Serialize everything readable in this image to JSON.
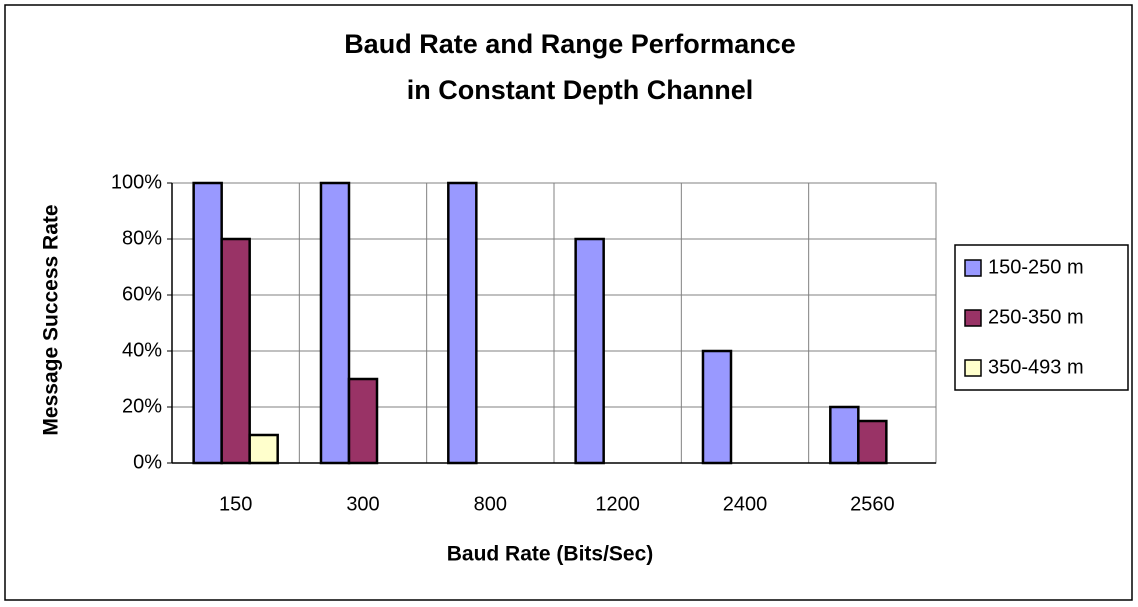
{
  "chart_data": {
    "type": "bar",
    "title": [
      "Baud Rate and Range Performance",
      "in Constant Depth Channel"
    ],
    "x_label": "Baud Rate (Bits/Sec)",
    "y_label": "Message Success Rate",
    "categories": [
      "150",
      "300",
      "800",
      "1200",
      "2400",
      "2560"
    ],
    "series": [
      {
        "name": "150-250 m",
        "color": "#9999ff",
        "values": [
          100,
          100,
          100,
          80,
          40,
          20
        ]
      },
      {
        "name": "250-350 m",
        "color": "#993366",
        "values": [
          80,
          30,
          0,
          0,
          0,
          15
        ]
      },
      {
        "name": "350-493 m",
        "color": "#ffffcc",
        "values": [
          10,
          0,
          0,
          0,
          0,
          0
        ]
      }
    ],
    "ylim": [
      0,
      100
    ],
    "yticks": [
      {
        "value": 0,
        "label": "0%"
      },
      {
        "value": 20,
        "label": "20%"
      },
      {
        "value": 40,
        "label": "40%"
      },
      {
        "value": 60,
        "label": "60%"
      },
      {
        "value": 80,
        "label": "80%"
      },
      {
        "value": 100,
        "label": "100%"
      }
    ],
    "grid": true,
    "legend": "right"
  }
}
